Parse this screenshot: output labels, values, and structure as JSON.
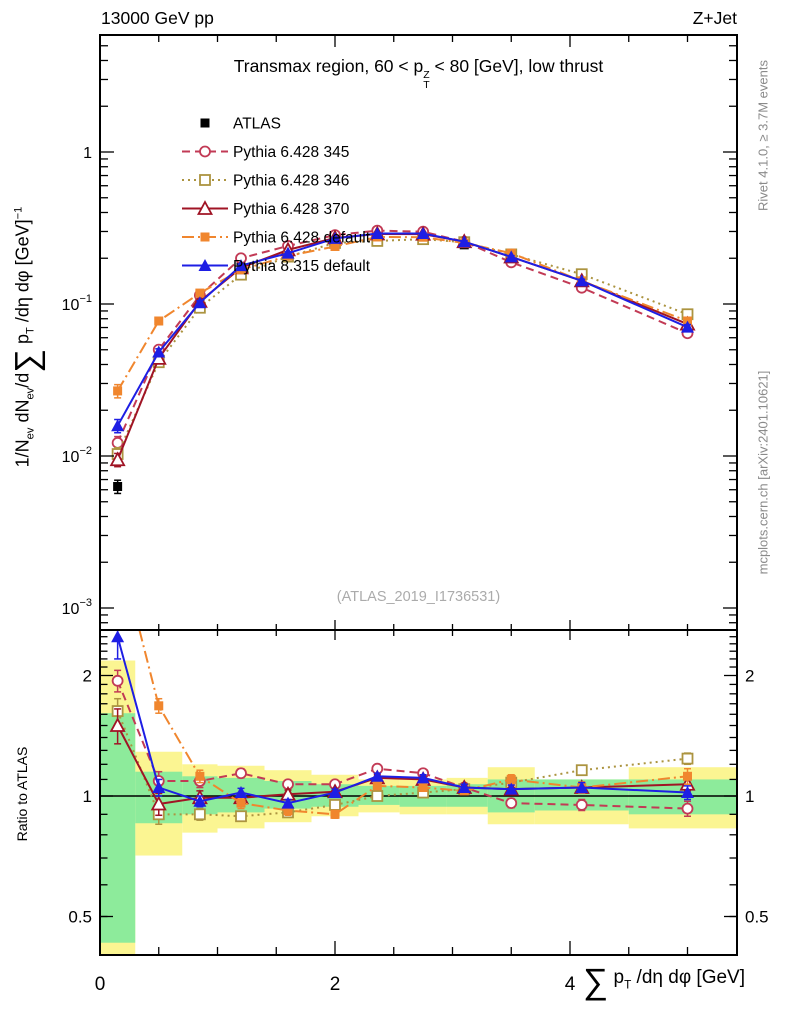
{
  "header": {
    "beam": "13000 GeV pp",
    "process": "Z+Jet"
  },
  "watermark": "(ATLAS_2019_I1736531)",
  "side_notes": {
    "rivet": "Rivet 4.1.0, ≥ 3.7M events",
    "mcplots": "mcplots.cern.ch [arXiv:2401.10621]"
  },
  "labels": {
    "title_tokens": [
      {
        "t": "Transmax region, 60 < p"
      },
      {
        "stack": [
          "Z",
          "T"
        ]
      },
      {
        "t": " < 80 [GeV], low thrust"
      }
    ],
    "xlabel_tokens": [
      {
        "big": "∑"
      },
      {
        "t": " p"
      },
      {
        "sub": "T"
      },
      {
        "t": " /dη dφ [GeV]"
      }
    ],
    "ylabel_tokens": [
      {
        "t": "1/N"
      },
      {
        "sub": "ev"
      },
      {
        "t": " dN"
      },
      {
        "sub": "ev"
      },
      {
        "t": "/d"
      },
      {
        "big": "∑"
      },
      {
        "t": " p"
      },
      {
        "sub": "T"
      },
      {
        "t": " /dη dφ  [GeV]"
      },
      {
        "sup": "−1"
      }
    ]
  },
  "axes": {
    "x": {
      "range": [
        0,
        5.42
      ],
      "major_ticks": [
        0,
        2,
        4
      ],
      "tick_labels": [
        "0",
        "2",
        "4"
      ],
      "minor_step": 0.5
    },
    "y_main": {
      "scale": "log",
      "range": [
        0.00072,
        5.8
      ],
      "tick_labels": [
        {
          "text": "1",
          "exp": null,
          "value": 1
        },
        {
          "text": "10",
          "exp": "−1",
          "value": 0.1
        },
        {
          "text": "10",
          "exp": "−2",
          "value": 0.01
        },
        {
          "text": "10",
          "exp": "−3",
          "value": 0.001
        }
      ]
    },
    "y_ratio": {
      "scale": "log",
      "range": [
        0.4,
        2.59
      ],
      "labeled_ticks": [
        2,
        1,
        0.5
      ],
      "tick_labels": [
        "2",
        "1",
        "0.5"
      ]
    }
  },
  "chart_data": {
    "type": "line",
    "title": "Transmax region, 60 < pT(Z) < 80 [GeV], low thrust",
    "xlabel": "Sum pT /deta dphi [GeV]",
    "ylabel": "1/N_ev dN_ev/dSum pT /deta dphi [GeV]^-1",
    "ratio_label": "Ratio to ATLAS",
    "x_range": [
      0,
      5.42
    ],
    "y_range_main": [
      0.00072,
      5.8
    ],
    "y_range_ratio": [
      0.4,
      2.59
    ],
    "grid": false,
    "legend_position": "top-left",
    "x": [
      0.15,
      0.5,
      0.85,
      1.2,
      1.6,
      2.0,
      2.36,
      2.75,
      3.1,
      3.5,
      4.1,
      5.0
    ],
    "bin_edges": [
      0,
      0.3,
      0.7,
      1.0,
      1.4,
      1.8,
      2.2,
      2.55,
      2.95,
      3.3,
      3.7,
      4.5,
      5.45
    ],
    "rel_err_main": [
      0.1,
      0.05,
      0.03,
      0.025,
      0.02,
      0.015,
      0.015,
      0.015,
      0.015,
      0.02,
      0.025,
      0.04
    ],
    "reference": {
      "name": "ATLAS",
      "color": "#000000",
      "marker": "square-filled",
      "values": [
        0.0063,
        0.046,
        0.105,
        0.175,
        0.225,
        0.265,
        0.26,
        0.262,
        0.245,
        0.196,
        0.135,
        0.069
      ]
    },
    "series": [
      {
        "name": "Pythia 6.428 345",
        "color": "#C23A55",
        "dash": "8,5",
        "marker": "circle-open",
        "values": [
          0.0122,
          0.0501,
          0.114,
          0.2,
          0.241,
          0.284,
          0.304,
          0.299,
          0.257,
          0.188,
          0.128,
          0.0642
        ],
        "ratio": [
          1.94,
          1.09,
          1.09,
          1.14,
          1.07,
          1.07,
          1.17,
          1.14,
          1.05,
          0.96,
          0.95,
          0.93
        ],
        "ratio_err": [
          0.12,
          0.06,
          0.04,
          0.03,
          0.025,
          0.02,
          0.02,
          0.02,
          0.02,
          0.025,
          0.03,
          0.04
        ]
      },
      {
        "name": "Pythia 6.428 346",
        "color": "#AC9440",
        "dash": "2,4",
        "marker": "square-open",
        "values": [
          0.0103,
          0.0414,
          0.0945,
          0.156,
          0.205,
          0.252,
          0.26,
          0.267,
          0.255,
          0.212,
          0.157,
          0.0856
        ],
        "ratio": [
          1.63,
          0.9,
          0.9,
          0.89,
          0.91,
          0.95,
          1.0,
          1.02,
          1.04,
          1.08,
          1.16,
          1.24
        ],
        "ratio_err": [
          0.12,
          0.05,
          0.03,
          0.025,
          0.02,
          0.02,
          0.02,
          0.02,
          0.02,
          0.025,
          0.03,
          0.04
        ]
      },
      {
        "name": "Pythia 6.428 370",
        "color": "#A01425",
        "dash": null,
        "marker": "triangle-open",
        "values": [
          0.00945,
          0.0439,
          0.104,
          0.173,
          0.227,
          0.272,
          0.289,
          0.288,
          0.257,
          0.204,
          0.142,
          0.0738
        ],
        "ratio": [
          1.5,
          0.955,
          0.99,
          0.99,
          1.01,
          1.025,
          1.11,
          1.1,
          1.05,
          1.04,
          1.05,
          1.07
        ],
        "ratio_err": [
          0.15,
          0.06,
          0.04,
          0.03,
          0.025,
          0.02,
          0.02,
          0.02,
          0.02,
          0.025,
          0.03,
          0.04
        ]
      },
      {
        "name": "Pythia 6.428 default",
        "color": "#F0862E",
        "dash": "12,4,2,4",
        "marker": "square-filled",
        "values": [
          0.0268,
          0.0773,
          0.118,
          0.168,
          0.207,
          0.239,
          0.276,
          0.275,
          0.252,
          0.216,
          0.142,
          0.0773
        ],
        "ratio": [
          4.25,
          1.68,
          1.12,
          0.96,
          0.92,
          0.9,
          1.06,
          1.05,
          1.03,
          1.1,
          1.05,
          1.12
        ],
        "ratio_err": [
          0.3,
          0.07,
          0.04,
          0.03,
          0.025,
          0.02,
          0.02,
          0.02,
          0.02,
          0.03,
          0.035,
          0.05
        ]
      },
      {
        "name": "Pythia 8.315 default",
        "color": "#1E1EE4",
        "dash": null,
        "marker": "triangle-filled",
        "values": [
          0.0158,
          0.0483,
          0.102,
          0.179,
          0.216,
          0.27,
          0.291,
          0.291,
          0.257,
          0.204,
          0.142,
          0.0704
        ],
        "ratio": [
          2.5,
          1.05,
          0.97,
          1.02,
          0.96,
          1.02,
          1.12,
          1.11,
          1.05,
          1.04,
          1.05,
          1.02
        ],
        "ratio_err": [
          0.3,
          0.05,
          0.03,
          0.025,
          0.02,
          0.02,
          0.02,
          0.02,
          0.02,
          0.025,
          0.03,
          0.04
        ]
      }
    ],
    "band_colors": {
      "yellow": "#FBF592",
      "green": "#8DEB9B"
    },
    "bands": [
      {
        "x0": 0.0,
        "x1": 0.3,
        "yellow": [
          0.4,
          2.18
        ],
        "green": [
          0.43,
          1.61
        ]
      },
      {
        "x0": 0.3,
        "x1": 0.7,
        "yellow": [
          0.71,
          1.29
        ],
        "green": [
          0.855,
          1.15
        ]
      },
      {
        "x0": 0.7,
        "x1": 1.0,
        "yellow": [
          0.81,
          1.2
        ],
        "green": [
          0.9,
          1.12
        ]
      },
      {
        "x0": 1.0,
        "x1": 1.4,
        "yellow": [
          0.83,
          1.19
        ],
        "green": [
          0.91,
          1.11
        ]
      },
      {
        "x0": 1.4,
        "x1": 1.8,
        "yellow": [
          0.86,
          1.16
        ],
        "green": [
          0.93,
          1.09
        ]
      },
      {
        "x0": 1.8,
        "x1": 2.2,
        "yellow": [
          0.89,
          1.13
        ],
        "green": [
          0.94,
          1.07
        ]
      },
      {
        "x0": 2.2,
        "x1": 2.55,
        "yellow": [
          0.91,
          1.1
        ],
        "green": [
          0.95,
          1.06
        ]
      },
      {
        "x0": 2.55,
        "x1": 2.95,
        "yellow": [
          0.9,
          1.1
        ],
        "green": [
          0.94,
          1.06
        ]
      },
      {
        "x0": 2.95,
        "x1": 3.3,
        "yellow": [
          0.9,
          1.11
        ],
        "green": [
          0.94,
          1.07
        ]
      },
      {
        "x0": 3.3,
        "x1": 3.7,
        "yellow": [
          0.85,
          1.18
        ],
        "green": [
          0.91,
          1.1
        ]
      },
      {
        "x0": 3.7,
        "x1": 4.5,
        "yellow": [
          0.85,
          1.1
        ],
        "green": [
          0.92,
          1.1
        ]
      },
      {
        "x0": 4.5,
        "x1": 5.45,
        "yellow": [
          0.83,
          1.18
        ],
        "green": [
          0.9,
          1.1
        ]
      }
    ]
  }
}
